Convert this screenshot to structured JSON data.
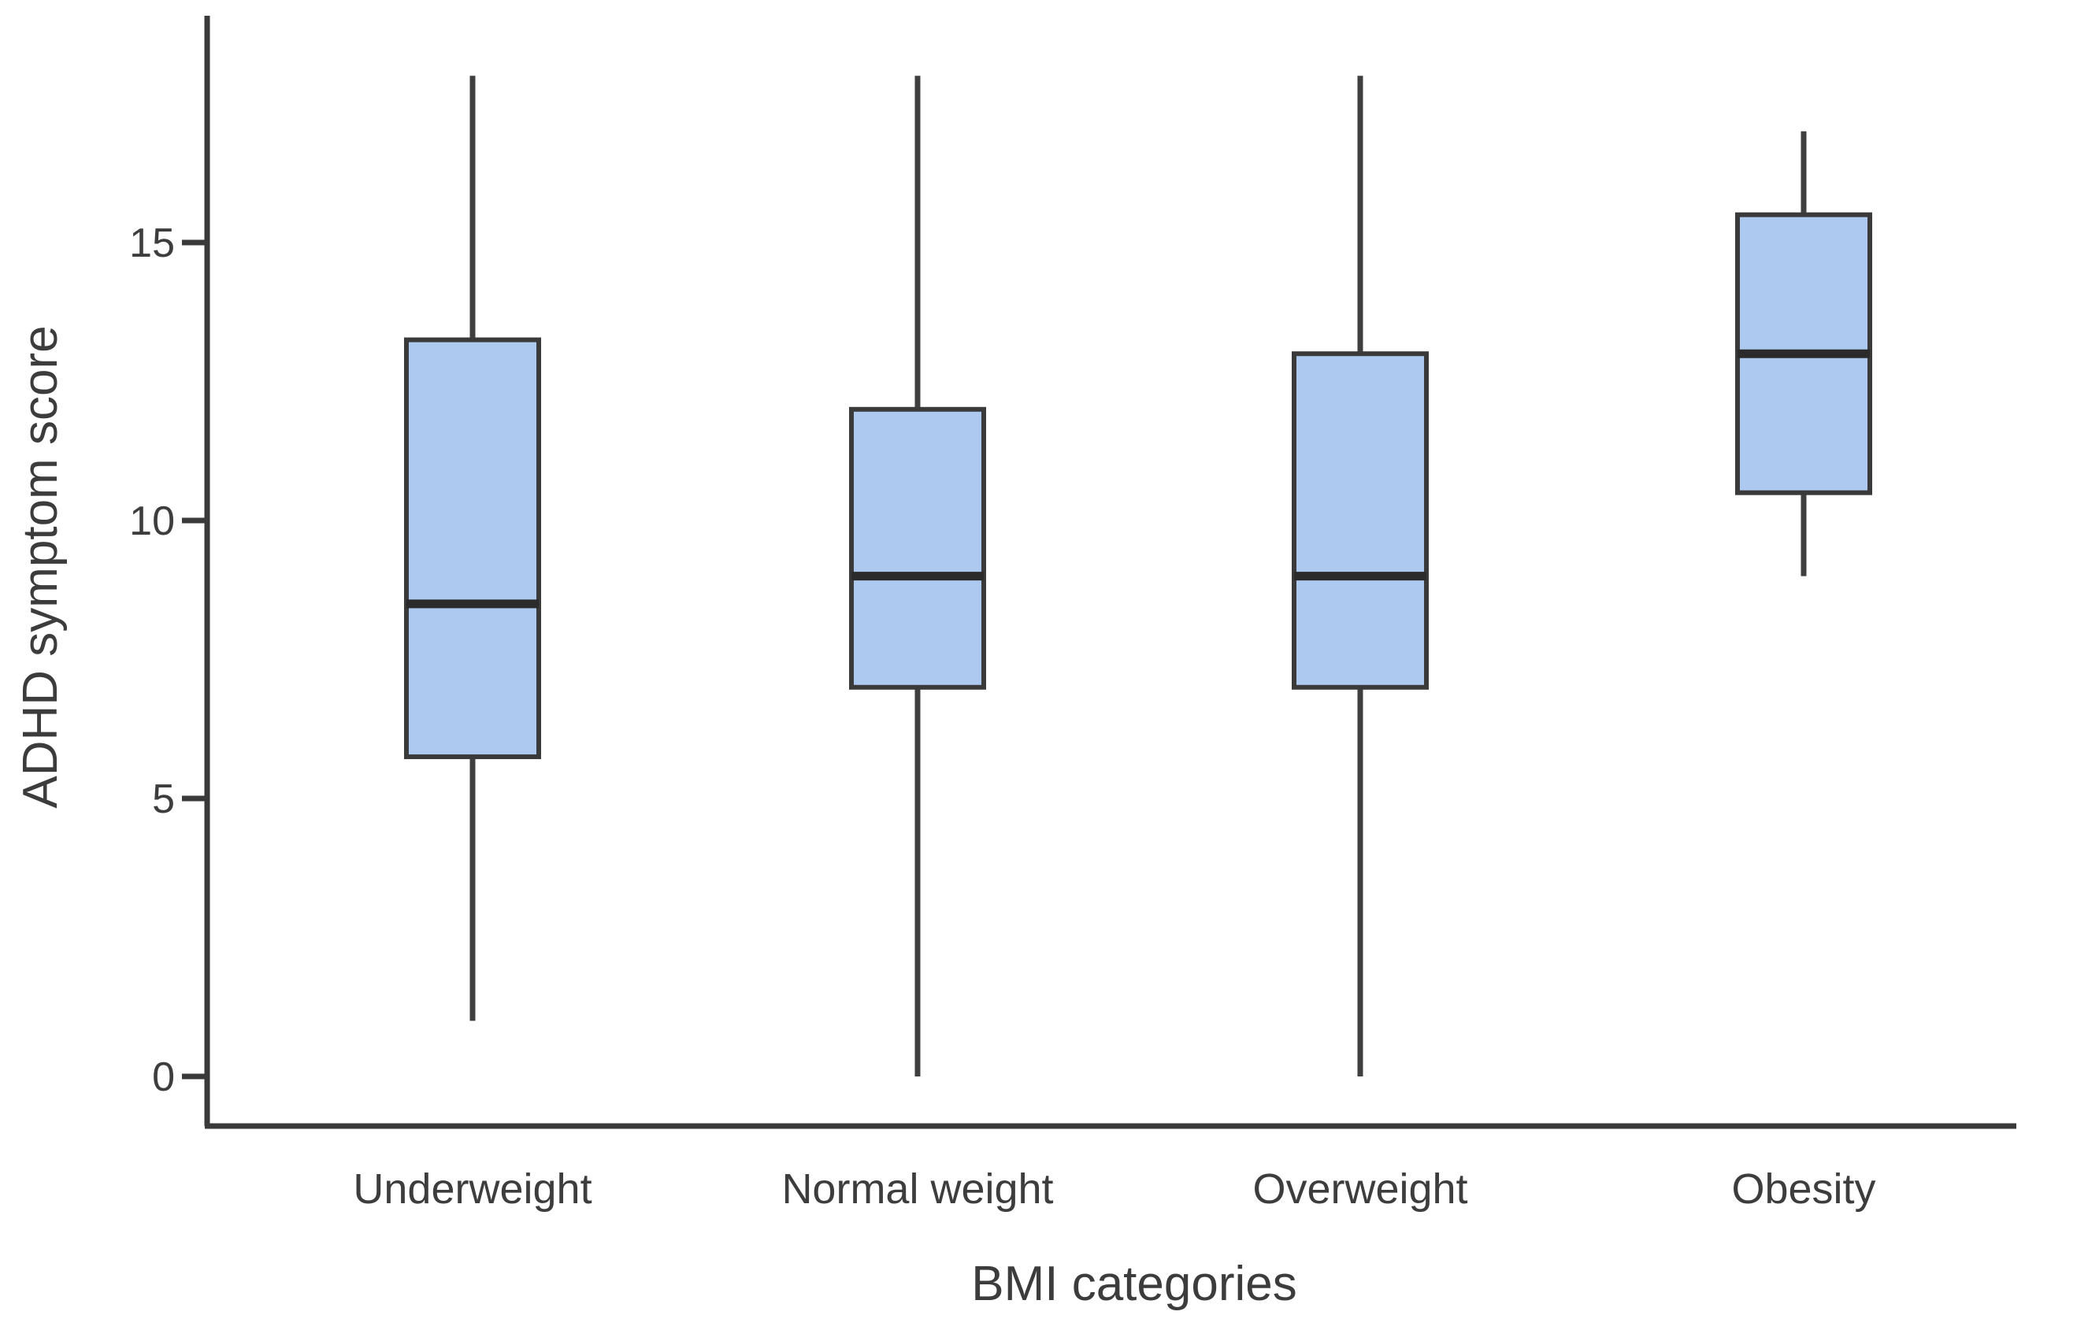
{
  "chart_data": {
    "type": "boxplot",
    "title": "",
    "xlabel": "BMI categories",
    "ylabel": "ADHD symptom score",
    "categories": [
      "Underweight",
      "Normal weight",
      "Overweight",
      "Obesity"
    ],
    "series": [
      {
        "name": "Underweight",
        "min": 1,
        "q1": 5.75,
        "median": 8.5,
        "q3": 13.25,
        "max": 18
      },
      {
        "name": "Normal weight",
        "min": 0,
        "q1": 7,
        "median": 9,
        "q3": 12,
        "max": 18
      },
      {
        "name": "Overweight",
        "min": 0,
        "q1": 7,
        "median": 9,
        "q3": 13,
        "max": 18
      },
      {
        "name": "Obesity",
        "min": 9,
        "q1": 10.5,
        "median": 13,
        "q3": 15.5,
        "max": 17
      }
    ],
    "y_ticks": [
      "0",
      "5",
      "10",
      "15"
    ],
    "y_tick_values": [
      0,
      5,
      10,
      15
    ],
    "ylim": [
      -0.9,
      19.1
    ],
    "grid": false,
    "legend": "none",
    "outliers": [],
    "colors": {
      "box_fill": "#adc9ef",
      "box_stroke": "#3a3a3a",
      "median": "#2b2b2b",
      "whisker": "#3f3f3f",
      "axis": "#3a3a3a",
      "text": "#3d3d3d"
    }
  }
}
